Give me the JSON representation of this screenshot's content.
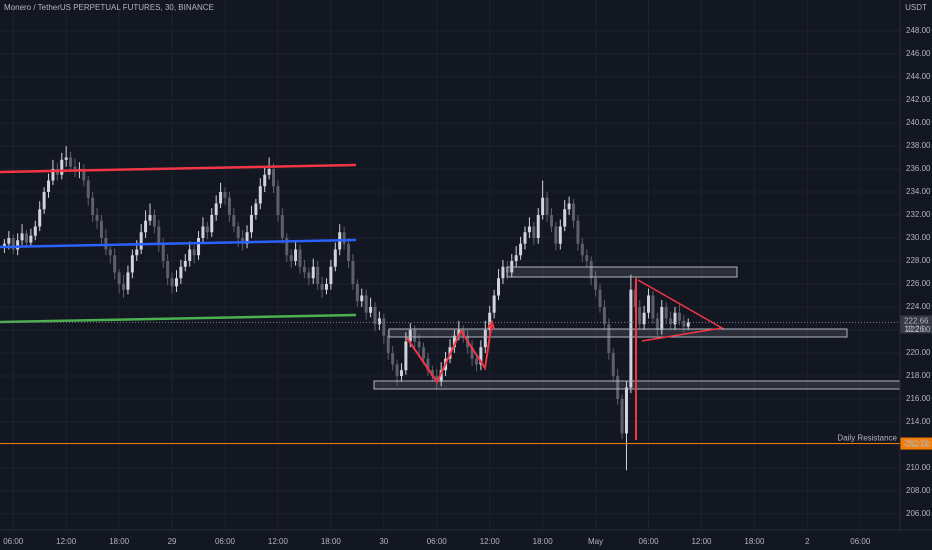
{
  "chart_data": {
    "type": "candlestick",
    "title": "Monero / TetherUS PERPETUAL FUTURES, 30, BINANCE",
    "currency": "USDT",
    "up_color": "#d1d4dc",
    "down_color": "#5d606b",
    "xlim": [
      4.5,
      106.5
    ],
    "xticks": [
      {
        "value": 6,
        "label": "06:00"
      },
      {
        "value": 12,
        "label": "12:00"
      },
      {
        "value": 18,
        "label": "18:00"
      },
      {
        "value": 24,
        "label": "29"
      },
      {
        "value": 30,
        "label": "06:00"
      },
      {
        "value": 36,
        "label": "12:00"
      },
      {
        "value": 42,
        "label": "18:00"
      },
      {
        "value": 48,
        "label": "30"
      },
      {
        "value": 54,
        "label": "06:00"
      },
      {
        "value": 60,
        "label": "12:00"
      },
      {
        "value": 66,
        "label": "18:00"
      },
      {
        "value": 72,
        "label": "May"
      },
      {
        "value": 78,
        "label": "06:00"
      },
      {
        "value": 84,
        "label": "12:00"
      },
      {
        "value": 90,
        "label": "18:00"
      },
      {
        "value": 96,
        "label": "2"
      },
      {
        "value": 102,
        "label": "06:00"
      }
    ],
    "ylim": [
      204.6,
      250.7
    ],
    "yticks": [
      {
        "value": 206,
        "label": "206.00"
      },
      {
        "value": 208,
        "label": "208.00"
      },
      {
        "value": 210,
        "label": "210.00"
      },
      {
        "value": 212,
        "label": "212.00"
      },
      {
        "value": 214,
        "label": "214.00"
      },
      {
        "value": 216,
        "label": "216.00"
      },
      {
        "value": 218,
        "label": "218.00"
      },
      {
        "value": 220,
        "label": "220.00"
      },
      {
        "value": 222,
        "label": "222.00"
      },
      {
        "value": 224,
        "label": "224.00"
      },
      {
        "value": 226,
        "label": "226.00"
      },
      {
        "value": 228,
        "label": "228.00"
      },
      {
        "value": 230,
        "label": "230.00"
      },
      {
        "value": 232,
        "label": "232.00"
      },
      {
        "value": 234,
        "label": "234.00"
      },
      {
        "value": 236,
        "label": "236.00"
      },
      {
        "value": 238,
        "label": "238.00"
      },
      {
        "value": 240,
        "label": "240.00"
      },
      {
        "value": 242,
        "label": "242.00"
      },
      {
        "value": 244,
        "label": "244.00"
      },
      {
        "value": 246,
        "label": "246.00"
      },
      {
        "value": 248,
        "label": "248.00"
      }
    ],
    "last_price": 222.66,
    "countdown": "12:26",
    "resistance": {
      "name": "Daily Resistance",
      "value": 212.12,
      "color": "#f57c00"
    },
    "x": [
      5,
      5.5,
      6,
      6.5,
      7,
      7.5,
      8,
      8.5,
      9,
      9.5,
      10,
      10.5,
      11,
      11.5,
      12,
      12.5,
      13,
      13.5,
      14,
      14.5,
      15,
      15.5,
      16,
      16.5,
      17,
      17.5,
      18,
      18.5,
      19,
      19.5,
      20,
      20.5,
      21,
      21.5,
      22,
      22.5,
      23,
      23.5,
      24,
      24.5,
      25,
      25.5,
      26,
      26.5,
      27,
      27.5,
      28,
      28.5,
      29,
      29.5,
      30,
      30.5,
      31,
      31.5,
      32,
      32.5,
      33,
      33.5,
      34,
      34.5,
      35,
      35.5,
      36,
      36.5,
      37,
      37.5,
      38,
      38.5,
      39,
      39.5,
      40,
      40.5,
      41,
      41.5,
      42,
      42.5,
      43,
      43.5,
      44,
      44.5,
      45,
      45.5,
      46,
      46.5,
      47,
      47.5,
      48,
      48.5,
      49,
      49.5,
      50,
      50.5,
      51,
      51.5,
      52,
      52.5,
      53,
      53.5,
      54,
      54.5,
      55,
      55.5,
      56,
      56.5,
      57,
      57.5,
      58,
      58.5,
      59,
      59.5,
      60,
      60.5,
      61,
      61.5,
      62,
      62.5,
      63,
      63.5,
      64,
      64.5,
      65,
      65.5,
      66,
      66.5,
      67,
      67.5,
      68,
      68.5,
      69,
      69.5,
      70,
      70.5,
      71,
      71.5,
      72,
      72.5,
      73,
      73.5,
      74,
      74.5,
      75,
      75.5,
      76,
      76.5,
      77,
      77.5,
      78,
      78.5,
      79,
      79.5,
      80,
      80.5,
      81,
      81.5,
      82,
      82.5
    ],
    "candles": [
      [
        229.2,
        229.9,
        228.7,
        229.5
      ],
      [
        229.5,
        230.6,
        229.0,
        230
      ],
      [
        230,
        230.3,
        228.6,
        229
      ],
      [
        229,
        230.4,
        228.5,
        229.8
      ],
      [
        229.8,
        231.2,
        229.4,
        230.4
      ],
      [
        230.4,
        230.7,
        229.1,
        229.6
      ],
      [
        229.6,
        230.8,
        229.2,
        230.2
      ],
      [
        230.2,
        231.5,
        229.8,
        231
      ],
      [
        231,
        233.2,
        230.6,
        232.5
      ],
      [
        232.5,
        234.4,
        232.1,
        234
      ],
      [
        234,
        235.6,
        233.5,
        235
      ],
      [
        235,
        236.8,
        234.6,
        236
      ],
      [
        236,
        236.5,
        235,
        235.5
      ],
      [
        235.5,
        237.4,
        235.1,
        236.8
      ],
      [
        236.8,
        238,
        236.2,
        237
      ],
      [
        237,
        237.5,
        235.9,
        236.2
      ],
      [
        236.2,
        236.9,
        235.3,
        235.8
      ],
      [
        235.8,
        236.6,
        235.2,
        236
      ],
      [
        236,
        236.4,
        234.5,
        235
      ],
      [
        235,
        235.4,
        232.8,
        233.5
      ],
      [
        233.5,
        234,
        231.4,
        232
      ],
      [
        232,
        232.6,
        230.8,
        231.5
      ],
      [
        231.5,
        232,
        229.4,
        230
      ],
      [
        230,
        230.8,
        228.5,
        229
      ],
      [
        229,
        229.5,
        227.8,
        228.5
      ],
      [
        228.5,
        229.1,
        226.4,
        227
      ],
      [
        227,
        227.3,
        225.2,
        226
      ],
      [
        226,
        226.8,
        224.8,
        225.5
      ],
      [
        225.5,
        227.6,
        225.1,
        227
      ],
      [
        227,
        229,
        226.5,
        228.5
      ],
      [
        228.5,
        229.8,
        228,
        229
      ],
      [
        229,
        231.2,
        228.6,
        230.5
      ],
      [
        230.5,
        232.4,
        230,
        231.5
      ],
      [
        231.5,
        233,
        231.1,
        232
      ],
      [
        232,
        232.5,
        230.4,
        231
      ],
      [
        231,
        231.6,
        228.8,
        229.5
      ],
      [
        229.5,
        230,
        227.4,
        228
      ],
      [
        228,
        228.6,
        225.9,
        226.5
      ],
      [
        226.5,
        227,
        225.2,
        225.8
      ],
      [
        225.8,
        227.2,
        225.3,
        226.5
      ],
      [
        226.5,
        228.1,
        226,
        227.5
      ],
      [
        227.5,
        228.6,
        227.1,
        228
      ],
      [
        228,
        229.7,
        227.5,
        229
      ],
      [
        229,
        229.4,
        227.8,
        228.5
      ],
      [
        228.5,
        230.6,
        228.1,
        230
      ],
      [
        230,
        231.8,
        229.5,
        231
      ],
      [
        231,
        231.4,
        229.9,
        230.5
      ],
      [
        230.5,
        232.6,
        230.1,
        232
      ],
      [
        232,
        233.7,
        231.5,
        233
      ],
      [
        233,
        234.8,
        232.6,
        234
      ],
      [
        234,
        234.4,
        232.9,
        233.5
      ],
      [
        233.5,
        234,
        231.4,
        232
      ],
      [
        232,
        232.6,
        230.5,
        231
      ],
      [
        231,
        231.4,
        229.2,
        230
      ],
      [
        230,
        230.7,
        228.9,
        229.5
      ],
      [
        229.5,
        231.1,
        229.1,
        230.5
      ],
      [
        230.5,
        232.8,
        230,
        232
      ],
      [
        232,
        233.4,
        231.6,
        233
      ],
      [
        233,
        235.2,
        232.5,
        234.5
      ],
      [
        234.5,
        236.3,
        234,
        235.5
      ],
      [
        235.5,
        237,
        235.1,
        236
      ],
      [
        236,
        236.5,
        233.9,
        234.5
      ],
      [
        234.5,
        235,
        231.4,
        232
      ],
      [
        232,
        232.6,
        229.5,
        230
      ],
      [
        230,
        230.4,
        227.9,
        228.5
      ],
      [
        228.5,
        229,
        227.4,
        228
      ],
      [
        228,
        229.8,
        227.6,
        229
      ],
      [
        229,
        229.4,
        226.9,
        227.5
      ],
      [
        227.5,
        228.1,
        226.5,
        227
      ],
      [
        227,
        227.4,
        225.9,
        226.5
      ],
      [
        226.5,
        228.2,
        226,
        227.5
      ],
      [
        227.5,
        228,
        225.5,
        226
      ],
      [
        226,
        226.6,
        224.8,
        225.5
      ],
      [
        225.5,
        226.5,
        225.1,
        226
      ],
      [
        226,
        228.1,
        225.5,
        227.5
      ],
      [
        227.5,
        229.6,
        227.1,
        229
      ],
      [
        229,
        231.2,
        228.5,
        230.5
      ],
      [
        230.5,
        231,
        229,
        229.5
      ],
      [
        229.5,
        230,
        227.4,
        228
      ],
      [
        228,
        228.6,
        225.5,
        226
      ],
      [
        226,
        226.4,
        224,
        224.5
      ],
      [
        224.5,
        225.6,
        224,
        225
      ],
      [
        225,
        225.5,
        222.9,
        223.5
      ],
      [
        223.5,
        224.8,
        223.1,
        224
      ],
      [
        224,
        224.4,
        221.9,
        222.5
      ],
      [
        222.5,
        223.6,
        222,
        223
      ],
      [
        223,
        223.4,
        220.8,
        221.5
      ],
      [
        221.5,
        222,
        219.4,
        220
      ],
      [
        220,
        220.6,
        218.5,
        219
      ],
      [
        219,
        219.4,
        217.2,
        218
      ],
      [
        218,
        219.1,
        217.5,
        218.5
      ],
      [
        218.5,
        221.8,
        218.1,
        221
      ],
      [
        221,
        222.6,
        220.5,
        222
      ],
      [
        222,
        222.4,
        220.5,
        221
      ],
      [
        221,
        221.6,
        219.9,
        220.5
      ],
      [
        220.5,
        220.9,
        219,
        219.5
      ],
      [
        219.5,
        220,
        218,
        218.5
      ],
      [
        218.5,
        218.9,
        217.5,
        218
      ],
      [
        218,
        218.6,
        216.9,
        217.5
      ],
      [
        217.5,
        219.2,
        217.1,
        218.5
      ],
      [
        218.5,
        220.1,
        218,
        219.5
      ],
      [
        219.5,
        221.2,
        219.1,
        220.5
      ],
      [
        220.5,
        222,
        220,
        221.5
      ],
      [
        221.5,
        222.8,
        221.1,
        222
      ],
      [
        222,
        222.4,
        220.9,
        221.5
      ],
      [
        221.5,
        222,
        219.9,
        220.5
      ],
      [
        220.5,
        221.1,
        218.9,
        219.5
      ],
      [
        219.5,
        219.9,
        218.4,
        219
      ],
      [
        219,
        221.1,
        218.5,
        220.5
      ],
      [
        220.5,
        222.8,
        220,
        222
      ],
      [
        222,
        224.1,
        221.6,
        223.5
      ],
      [
        223.5,
        225.5,
        223,
        225
      ],
      [
        225,
        227.3,
        224.6,
        226.5
      ],
      [
        226.5,
        228.1,
        226,
        227.5
      ],
      [
        227.5,
        228,
        226.4,
        227
      ],
      [
        227,
        228.6,
        226.6,
        228
      ],
      [
        228,
        229.3,
        227.5,
        228.5
      ],
      [
        228.5,
        230.1,
        228.1,
        229.5
      ],
      [
        229.5,
        231,
        229,
        230.5
      ],
      [
        230.5,
        231.8,
        230,
        231
      ],
      [
        231,
        231.4,
        229.4,
        230
      ],
      [
        230,
        232.6,
        229.5,
        232
      ],
      [
        232,
        235,
        231.6,
        233.5
      ],
      [
        233.5,
        234,
        231.4,
        232
      ],
      [
        232,
        232.6,
        230.5,
        231
      ],
      [
        231,
        231.4,
        228.9,
        229.5
      ],
      [
        229.5,
        231.6,
        229,
        231
      ],
      [
        231,
        233.3,
        230.6,
        232.5
      ],
      [
        232.5,
        233.6,
        232,
        233
      ],
      [
        233,
        233.4,
        230.9,
        231.5
      ],
      [
        231.5,
        232,
        228.9,
        229.5
      ],
      [
        229.5,
        230,
        227.9,
        228.5
      ],
      [
        228.5,
        229,
        227.5,
        228
      ],
      [
        228,
        228.4,
        225.9,
        226.5
      ],
      [
        226.5,
        227.1,
        224.9,
        225.5
      ],
      [
        225.5,
        226,
        223.5,
        224
      ],
      [
        224,
        224.6,
        222,
        222.5
      ],
      [
        222.5,
        223,
        219.4,
        220
      ],
      [
        220,
        220.4,
        217.5,
        218
      ],
      [
        218,
        218.6,
        215.5,
        216
      ],
      [
        216,
        216.4,
        212.5,
        213
      ],
      [
        213,
        217.6,
        209.8,
        217
      ],
      [
        217,
        226.8,
        216.5,
        225.5
      ],
      [
        225.5,
        226,
        223.5,
        224
      ],
      [
        224,
        224.6,
        222,
        222.5
      ],
      [
        222.5,
        224.1,
        222,
        223.5
      ],
      [
        223.5,
        225.6,
        223,
        225
      ],
      [
        225,
        225.4,
        222.5,
        223
      ],
      [
        223,
        223.5,
        221.5,
        222
      ],
      [
        222,
        224.6,
        221.6,
        224
      ],
      [
        224,
        224.4,
        222.5,
        223
      ],
      [
        223,
        223.6,
        222,
        222.5
      ],
      [
        222.5,
        224,
        222,
        223.5
      ],
      [
        223.5,
        224.2,
        222.4,
        222.8
      ],
      [
        222.8,
        223.3,
        221.8,
        222.3
      ],
      [
        222.3,
        223,
        222,
        222.66
      ]
    ]
  }
}
